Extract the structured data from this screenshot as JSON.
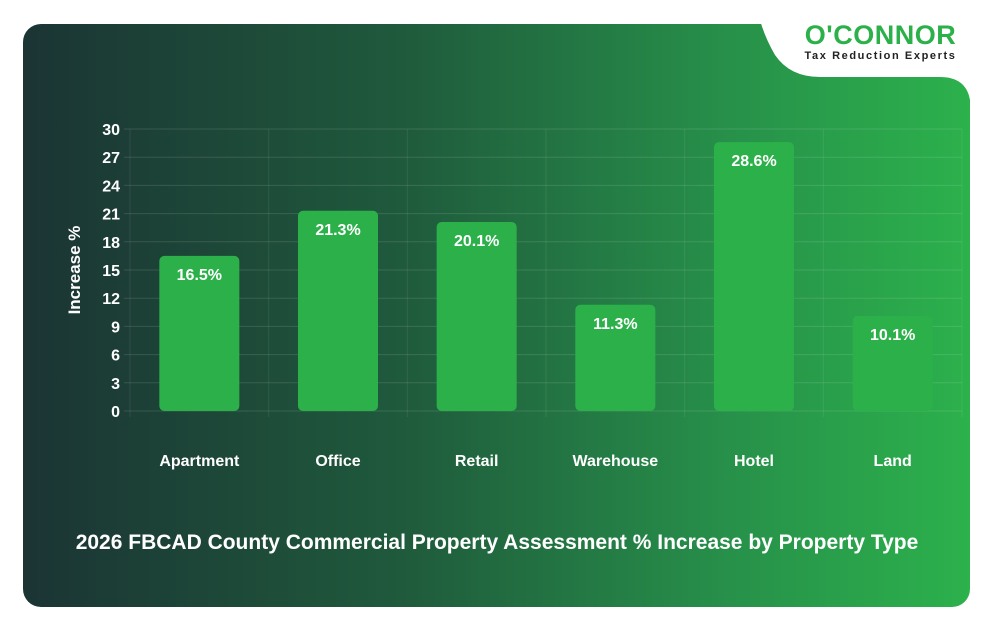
{
  "logo": {
    "word": "O'CONNOR",
    "tagline": "Tax Reduction Experts"
  },
  "colors": {
    "bar": "#2cb14a",
    "bg_left": "#1b3434",
    "bg_right": "#2cb14c",
    "logo": "#2cb14a"
  },
  "chart_data": {
    "type": "bar",
    "title": "2026 FBCAD County Commercial Property Assessment % Increase by Property Type",
    "xlabel": "",
    "ylabel": "Increase %",
    "categories": [
      "Apartment",
      "Office",
      "Retail",
      "Warehouse",
      "Hotel",
      "Land"
    ],
    "values": [
      16.5,
      21.3,
      20.1,
      11.3,
      28.6,
      10.1
    ],
    "data_labels": [
      "16.5%",
      "21.3%",
      "20.1%",
      "11.3%",
      "28.6%",
      "10.1%"
    ],
    "ylim": [
      0,
      30
    ],
    "yticks": [
      0,
      3,
      6,
      9,
      12,
      15,
      18,
      21,
      24,
      27,
      30
    ],
    "grid": true,
    "legend": "none"
  }
}
